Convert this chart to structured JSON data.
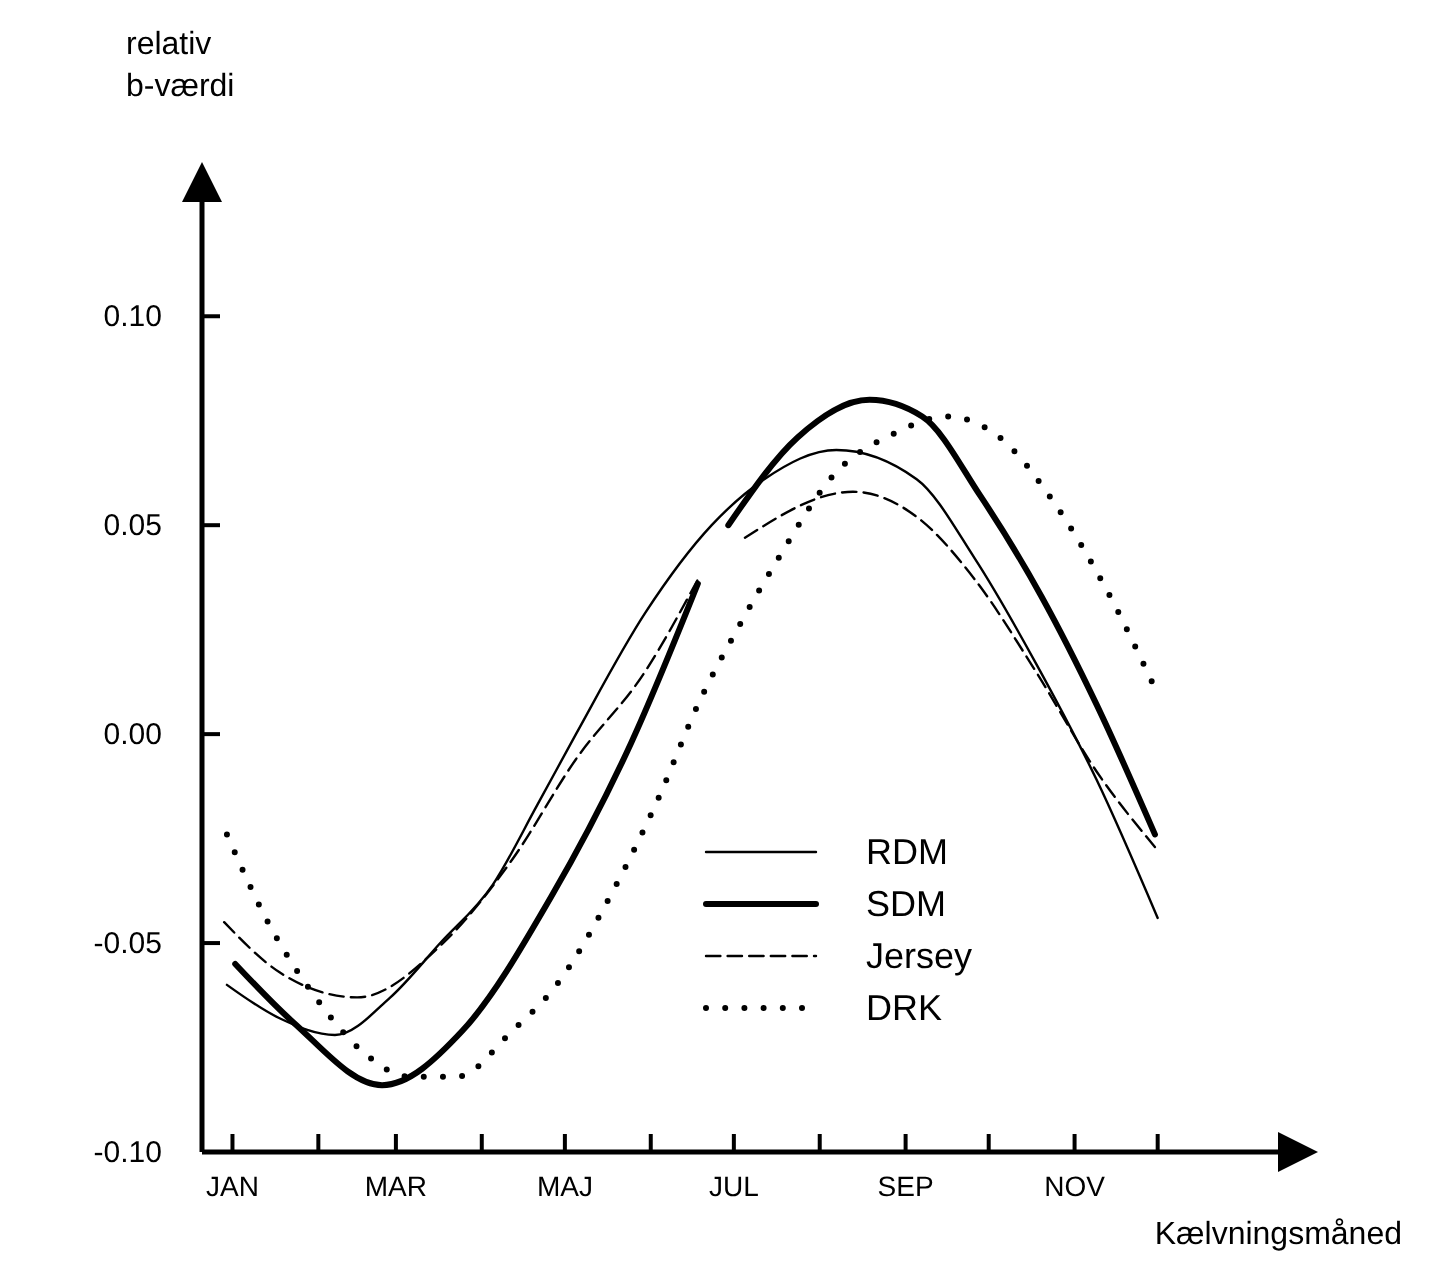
{
  "chart_data": {
    "type": "line",
    "xlabel": "Kælvningsmåned",
    "ylabel": "relativ b-værdi",
    "xlim": [
      "--01-04",
      "--12-31"
    ],
    "ylim": [
      -0.1,
      0.135
    ],
    "xticks": [
      {
        "value": "--01-15",
        "label": "JAN"
      },
      {
        "value": "--02-15",
        "label": null
      },
      {
        "value": "--03-15",
        "label": "MAR"
      },
      {
        "value": "--04-15",
        "label": null
      },
      {
        "value": "--05-15",
        "label": "MAJ"
      },
      {
        "value": "--06-15",
        "label": null
      },
      {
        "value": "--07-15",
        "label": "JUL"
      },
      {
        "value": "--08-15",
        "label": null
      },
      {
        "value": "--09-15",
        "label": "SEP"
      },
      {
        "value": "--10-15",
        "label": null
      },
      {
        "value": "--11-15",
        "label": "NOV"
      },
      {
        "value": "--12-15",
        "label": null
      }
    ],
    "yticks": [
      {
        "value": -0.1,
        "label": "-0.10"
      },
      {
        "value": -0.05,
        "label": "-0.05"
      },
      {
        "value": 0,
        "label": "0.00"
      },
      {
        "value": 0.05,
        "label": "0.05"
      },
      {
        "value": 0.1,
        "label": "0.10"
      }
    ],
    "grid": false,
    "legend": "bottom right",
    "series": [
      {
        "name": "RDM",
        "color": "#000000",
        "line_style": "solid",
        "x": [
          "--01-13",
          "--02-01",
          "--02-21",
          "--03-13",
          "--03-31",
          "--04-19",
          "--05-05",
          "--05-19",
          "--06-13",
          "--07-07",
          "--07-26",
          "--08-21",
          "--09-19",
          "--10-10",
          "--11-01",
          "--11-23",
          "--12-15"
        ],
        "values": [
          -0.06,
          -0.068,
          -0.072,
          -0.063,
          -0.05,
          -0.036,
          -0.017,
          0.0,
          0.029,
          0.05,
          0.061,
          0.068,
          0.061,
          0.042,
          0.017,
          -0.011,
          -0.044
        ]
      },
      {
        "name": "SDM",
        "color": "#000000",
        "line_style": "solid",
        "x": [
          "--01-16",
          "--02-06",
          "--03-10",
          "--04-08",
          "--05-10",
          "--06-08",
          "--07-02",
          "--07-08",
          "--07-13",
          "--08-07",
          "--09-02",
          "--09-21",
          "--10-12",
          "--11-03",
          "--11-23",
          "--12-14"
        ],
        "values": [
          -0.055,
          -0.069,
          -0.084,
          -0.071,
          -0.039,
          -0.002,
          0.036,
          null,
          0.05,
          0.071,
          0.08,
          0.076,
          0.057,
          0.033,
          0.007,
          -0.024
        ]
      },
      {
        "name": "Jersey",
        "color": "#000000",
        "line_style": "dashed",
        "x": [
          "--01-12",
          "--02-01",
          "--03-01",
          "--04-01",
          "--04-26",
          "--05-19",
          "--06-13",
          "--07-02",
          "--07-10",
          "--07-19",
          "--08-27",
          "--09-19",
          "--10-10",
          "--11-01",
          "--11-23",
          "--12-14"
        ],
        "values": [
          -0.045,
          -0.057,
          -0.063,
          -0.05,
          -0.03,
          -0.006,
          0.015,
          0.037,
          null,
          0.047,
          0.058,
          0.052,
          0.037,
          0.015,
          -0.009,
          -0.027
        ]
      },
      {
        "name": "DRK",
        "color": "#000000",
        "line_style": "dotted",
        "x": [
          "--01-13",
          "--01-27",
          "--02-14",
          "--03-03",
          "--03-20",
          "--04-06",
          "--04-26",
          "--05-12",
          "--06-01",
          "--06-18",
          "--07-02",
          "--07-17",
          "--07-31",
          "--08-20",
          "--09-11",
          "--09-30",
          "--10-19",
          "--11-08",
          "--11-27",
          "--12-14"
        ],
        "values": [
          -0.024,
          -0.044,
          -0.063,
          -0.076,
          -0.082,
          -0.082,
          -0.071,
          -0.06,
          -0.038,
          -0.015,
          0.007,
          0.026,
          0.042,
          0.062,
          0.072,
          0.076,
          0.071,
          0.055,
          0.034,
          0.011
        ]
      }
    ]
  }
}
